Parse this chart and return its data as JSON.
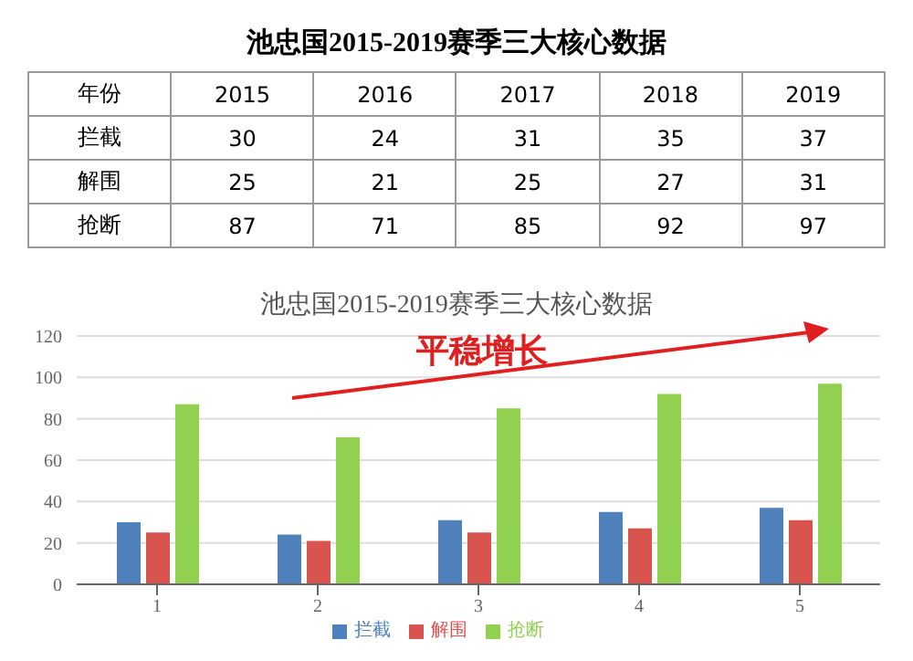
{
  "chart_data": [
    {
      "type": "heatmap",
      "title": "池忠国2015-2019赛季三大核心数据",
      "annotations": [
        "年份"
      ],
      "categories": [
        "2015",
        "2016",
        "2017",
        "2018",
        "2019"
      ],
      "y_categories": [
        "拦截",
        "解围",
        "抢断"
      ],
      "data_labels": true,
      "cells": [
        [
          30,
          24,
          31,
          35,
          37
        ],
        [
          25,
          21,
          25,
          27,
          31
        ],
        [
          87,
          71,
          85,
          92,
          97
        ]
      ]
    },
    {
      "type": "bar",
      "title": "池忠国2015-2019赛季三大核心数据",
      "annotations": [
        "平稳增长"
      ],
      "categories": [
        "1",
        "2",
        "3",
        "4",
        "5"
      ],
      "series": [
        {
          "name": "拦截",
          "color": "#4f81bd",
          "values": [
            30,
            24,
            31,
            35,
            37
          ]
        },
        {
          "name": "解围",
          "color": "#d9534f",
          "values": [
            25,
            21,
            25,
            27,
            31
          ]
        },
        {
          "name": "抢断",
          "color": "#92d050",
          "values": [
            87,
            71,
            85,
            92,
            97
          ]
        }
      ],
      "ylim": [
        0,
        120
      ],
      "yticks": [
        0,
        20,
        40,
        60,
        80,
        100,
        120
      ],
      "grid": "y",
      "legend": "bottom"
    }
  ]
}
